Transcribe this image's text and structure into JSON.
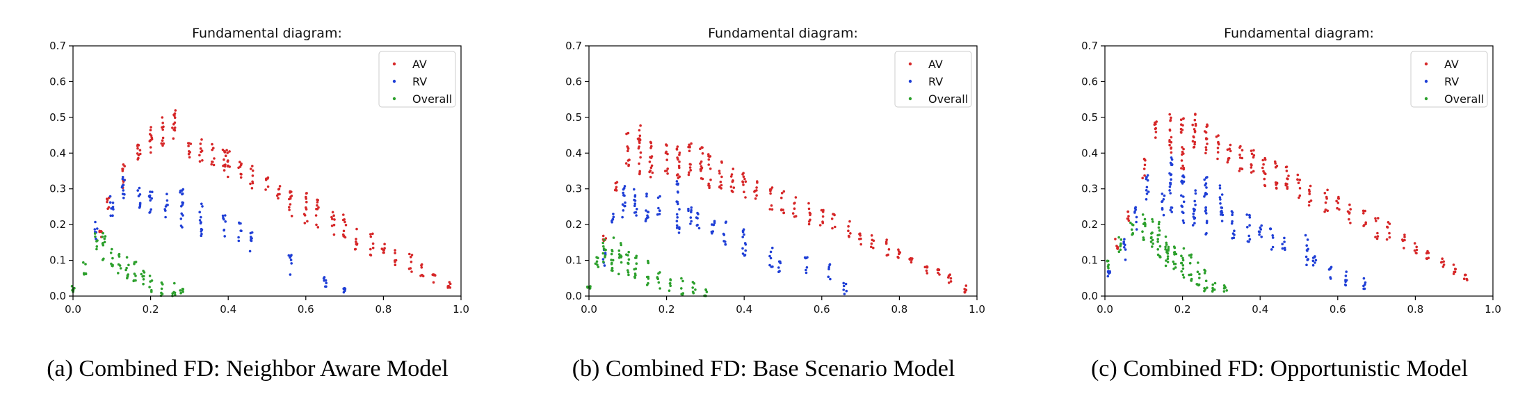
{
  "chart_data": [
    {
      "type": "scatter",
      "title": "Fundamental diagram:",
      "caption": "(a) Combined FD: Neighbor Aware Model",
      "xlim": [
        0.0,
        1.0
      ],
      "ylim": [
        0.0,
        0.7
      ],
      "xticks": [
        "0.0",
        "0.2",
        "0.4",
        "0.6",
        "0.8",
        "1.0"
      ],
      "yticks": [
        "0.0",
        "0.1",
        "0.2",
        "0.3",
        "0.4",
        "0.5",
        "0.6",
        "0.7"
      ],
      "legend_position": "top-right",
      "series": [
        {
          "name": "AV",
          "color": "#d62728",
          "clusters": [
            [
              0.07,
              0.16,
              0.19
            ],
            [
              0.09,
              0.24,
              0.28
            ],
            [
              0.13,
              0.29,
              0.37
            ],
            [
              0.17,
              0.36,
              0.45
            ],
            [
              0.2,
              0.4,
              0.48
            ],
            [
              0.23,
              0.42,
              0.5
            ],
            [
              0.26,
              0.44,
              0.54
            ],
            [
              0.3,
              0.38,
              0.45
            ],
            [
              0.33,
              0.37,
              0.44
            ],
            [
              0.36,
              0.36,
              0.43
            ],
            [
              0.39,
              0.34,
              0.43
            ],
            [
              0.4,
              0.33,
              0.41
            ],
            [
              0.43,
              0.32,
              0.39
            ],
            [
              0.46,
              0.3,
              0.37
            ],
            [
              0.5,
              0.29,
              0.34
            ],
            [
              0.53,
              0.27,
              0.33
            ],
            [
              0.56,
              0.22,
              0.31
            ],
            [
              0.6,
              0.2,
              0.29
            ],
            [
              0.63,
              0.19,
              0.27
            ],
            [
              0.67,
              0.17,
              0.24
            ],
            [
              0.7,
              0.16,
              0.24
            ],
            [
              0.73,
              0.13,
              0.2
            ],
            [
              0.77,
              0.11,
              0.18
            ],
            [
              0.8,
              0.1,
              0.16
            ],
            [
              0.83,
              0.08,
              0.13
            ],
            [
              0.87,
              0.06,
              0.12
            ],
            [
              0.9,
              0.05,
              0.09
            ],
            [
              0.93,
              0.03,
              0.07
            ],
            [
              0.97,
              0.01,
              0.04
            ]
          ]
        },
        {
          "name": "RV",
          "color": "#1f3fd6",
          "clusters": [
            [
              0.06,
              0.16,
              0.21
            ],
            [
              0.1,
              0.22,
              0.29
            ],
            [
              0.13,
              0.26,
              0.34
            ],
            [
              0.17,
              0.24,
              0.31
            ],
            [
              0.2,
              0.22,
              0.3
            ],
            [
              0.24,
              0.22,
              0.29
            ],
            [
              0.28,
              0.17,
              0.3
            ],
            [
              0.33,
              0.16,
              0.26
            ],
            [
              0.39,
              0.16,
              0.23
            ],
            [
              0.43,
              0.15,
              0.21
            ],
            [
              0.46,
              0.11,
              0.18
            ],
            [
              0.56,
              0.06,
              0.12
            ],
            [
              0.65,
              0.02,
              0.08
            ],
            [
              0.7,
              0.01,
              0.03
            ]
          ]
        },
        {
          "name": "Overall",
          "color": "#2ca02c",
          "clusters": [
            [
              0.0,
              0.01,
              0.03
            ],
            [
              0.03,
              0.06,
              0.11
            ],
            [
              0.06,
              0.13,
              0.18
            ],
            [
              0.08,
              0.1,
              0.19
            ],
            [
              0.1,
              0.08,
              0.14
            ],
            [
              0.12,
              0.06,
              0.12
            ],
            [
              0.14,
              0.04,
              0.11
            ],
            [
              0.16,
              0.03,
              0.1
            ],
            [
              0.18,
              0.02,
              0.08
            ],
            [
              0.2,
              0.01,
              0.06
            ],
            [
              0.23,
              0.0,
              0.05
            ],
            [
              0.26,
              0.0,
              0.04
            ],
            [
              0.28,
              0.0,
              0.02
            ]
          ]
        }
      ]
    },
    {
      "type": "scatter",
      "title": "Fundamental diagram:",
      "caption": "(b) Combined FD: Base Scenario Model",
      "xlim": [
        0.0,
        1.0
      ],
      "ylim": [
        0.0,
        0.7
      ],
      "xticks": [
        "0.0",
        "0.2",
        "0.4",
        "0.6",
        "0.8",
        "1.0"
      ],
      "yticks": [
        "0.0",
        "0.1",
        "0.2",
        "0.3",
        "0.4",
        "0.5",
        "0.6",
        "0.7"
      ],
      "legend_position": "top-right",
      "series": [
        {
          "name": "AV",
          "color": "#d62728",
          "clusters": [
            [
              0.04,
              0.14,
              0.17
            ],
            [
              0.07,
              0.28,
              0.32
            ],
            [
              0.1,
              0.36,
              0.46
            ],
            [
              0.13,
              0.34,
              0.49
            ],
            [
              0.16,
              0.32,
              0.44
            ],
            [
              0.2,
              0.34,
              0.43
            ],
            [
              0.23,
              0.33,
              0.45
            ],
            [
              0.26,
              0.32,
              0.43
            ],
            [
              0.29,
              0.31,
              0.42
            ],
            [
              0.31,
              0.3,
              0.4
            ],
            [
              0.34,
              0.3,
              0.38
            ],
            [
              0.37,
              0.28,
              0.36
            ],
            [
              0.4,
              0.27,
              0.35
            ],
            [
              0.43,
              0.26,
              0.33
            ],
            [
              0.47,
              0.24,
              0.31
            ],
            [
              0.5,
              0.23,
              0.3
            ],
            [
              0.53,
              0.22,
              0.28
            ],
            [
              0.57,
              0.2,
              0.27
            ],
            [
              0.6,
              0.19,
              0.25
            ],
            [
              0.63,
              0.18,
              0.23
            ],
            [
              0.67,
              0.16,
              0.21
            ],
            [
              0.7,
              0.14,
              0.19
            ],
            [
              0.73,
              0.13,
              0.17
            ],
            [
              0.77,
              0.11,
              0.16
            ],
            [
              0.8,
              0.09,
              0.13
            ],
            [
              0.83,
              0.08,
              0.11
            ],
            [
              0.87,
              0.06,
              0.09
            ],
            [
              0.9,
              0.05,
              0.08
            ],
            [
              0.93,
              0.03,
              0.06
            ],
            [
              0.97,
              0.01,
              0.03
            ]
          ]
        },
        {
          "name": "RV",
          "color": "#1f3fd6",
          "clusters": [
            [
              0.04,
              0.08,
              0.13
            ],
            [
              0.06,
              0.18,
              0.23
            ],
            [
              0.09,
              0.22,
              0.33
            ],
            [
              0.12,
              0.21,
              0.3
            ],
            [
              0.15,
              0.2,
              0.29
            ],
            [
              0.18,
              0.22,
              0.28
            ],
            [
              0.23,
              0.17,
              0.33
            ],
            [
              0.26,
              0.19,
              0.26
            ],
            [
              0.28,
              0.18,
              0.24
            ],
            [
              0.32,
              0.16,
              0.22
            ],
            [
              0.35,
              0.14,
              0.21
            ],
            [
              0.4,
              0.1,
              0.2
            ],
            [
              0.47,
              0.08,
              0.14
            ],
            [
              0.49,
              0.06,
              0.11
            ],
            [
              0.56,
              0.05,
              0.11
            ],
            [
              0.62,
              0.04,
              0.09
            ],
            [
              0.66,
              0.0,
              0.05
            ]
          ]
        },
        {
          "name": "Overall",
          "color": "#2ca02c",
          "clusters": [
            [
              0.0,
              0.02,
              0.03
            ],
            [
              0.02,
              0.08,
              0.11
            ],
            [
              0.04,
              0.09,
              0.17
            ],
            [
              0.06,
              0.07,
              0.17
            ],
            [
              0.08,
              0.06,
              0.15
            ],
            [
              0.1,
              0.05,
              0.13
            ],
            [
              0.12,
              0.04,
              0.12
            ],
            [
              0.15,
              0.03,
              0.1
            ],
            [
              0.18,
              0.02,
              0.08
            ],
            [
              0.21,
              0.01,
              0.06
            ],
            [
              0.24,
              0.0,
              0.05
            ],
            [
              0.27,
              0.0,
              0.04
            ],
            [
              0.3,
              0.0,
              0.02
            ]
          ]
        }
      ]
    },
    {
      "type": "scatter",
      "title": "Fundamental diagram:",
      "caption": "(c) Combined FD: Opportunistic Model",
      "xlim": [
        0.0,
        1.0
      ],
      "ylim": [
        0.0,
        0.7
      ],
      "xticks": [
        "0.0",
        "0.2",
        "0.4",
        "0.6",
        "0.8",
        "1.0"
      ],
      "yticks": [
        "0.0",
        "0.1",
        "0.2",
        "0.3",
        "0.4",
        "0.5",
        "0.6",
        "0.7"
      ],
      "legend_position": "top-right",
      "series": [
        {
          "name": "AV",
          "color": "#d62728",
          "clusters": [
            [
              0.03,
              0.13,
              0.16
            ],
            [
              0.06,
              0.21,
              0.25
            ],
            [
              0.1,
              0.33,
              0.39
            ],
            [
              0.13,
              0.43,
              0.5
            ],
            [
              0.17,
              0.4,
              0.52
            ],
            [
              0.2,
              0.34,
              0.5
            ],
            [
              0.23,
              0.41,
              0.54
            ],
            [
              0.26,
              0.4,
              0.5
            ],
            [
              0.29,
              0.38,
              0.45
            ],
            [
              0.32,
              0.37,
              0.44
            ],
            [
              0.35,
              0.35,
              0.43
            ],
            [
              0.38,
              0.34,
              0.42
            ],
            [
              0.41,
              0.3,
              0.39
            ],
            [
              0.44,
              0.3,
              0.38
            ],
            [
              0.47,
              0.28,
              0.37
            ],
            [
              0.5,
              0.27,
              0.34
            ],
            [
              0.53,
              0.25,
              0.31
            ],
            [
              0.57,
              0.23,
              0.3
            ],
            [
              0.6,
              0.22,
              0.28
            ],
            [
              0.63,
              0.2,
              0.26
            ],
            [
              0.67,
              0.18,
              0.24
            ],
            [
              0.7,
              0.16,
              0.22
            ],
            [
              0.73,
              0.15,
              0.21
            ],
            [
              0.77,
              0.13,
              0.18
            ],
            [
              0.8,
              0.11,
              0.16
            ],
            [
              0.83,
              0.1,
              0.14
            ],
            [
              0.87,
              0.08,
              0.11
            ],
            [
              0.9,
              0.06,
              0.09
            ],
            [
              0.93,
              0.03,
              0.06
            ]
          ]
        },
        {
          "name": "RV",
          "color": "#1f3fd6",
          "clusters": [
            [
              0.01,
              0.05,
              0.07
            ],
            [
              0.05,
              0.1,
              0.16
            ],
            [
              0.08,
              0.18,
              0.25
            ],
            [
              0.11,
              0.26,
              0.34
            ],
            [
              0.15,
              0.22,
              0.29
            ],
            [
              0.17,
              0.23,
              0.4
            ],
            [
              0.2,
              0.2,
              0.34
            ],
            [
              0.23,
              0.19,
              0.3
            ],
            [
              0.26,
              0.17,
              0.34
            ],
            [
              0.3,
              0.19,
              0.31
            ],
            [
              0.33,
              0.16,
              0.24
            ],
            [
              0.37,
              0.15,
              0.23
            ],
            [
              0.4,
              0.14,
              0.2
            ],
            [
              0.43,
              0.13,
              0.19
            ],
            [
              0.46,
              0.12,
              0.17
            ],
            [
              0.52,
              0.08,
              0.17
            ],
            [
              0.54,
              0.06,
              0.12
            ],
            [
              0.58,
              0.04,
              0.1
            ],
            [
              0.62,
              0.02,
              0.08
            ],
            [
              0.67,
              0.02,
              0.05
            ]
          ]
        },
        {
          "name": "Overall",
          "color": "#2ca02c",
          "clusters": [
            [
              0.01,
              0.07,
              0.1
            ],
            [
              0.04,
              0.12,
              0.18
            ],
            [
              0.07,
              0.17,
              0.23
            ],
            [
              0.1,
              0.15,
              0.23
            ],
            [
              0.12,
              0.13,
              0.22
            ],
            [
              0.14,
              0.09,
              0.21
            ],
            [
              0.16,
              0.06,
              0.19
            ],
            [
              0.18,
              0.05,
              0.14
            ],
            [
              0.2,
              0.05,
              0.14
            ],
            [
              0.22,
              0.04,
              0.12
            ],
            [
              0.24,
              0.03,
              0.1
            ],
            [
              0.26,
              0.01,
              0.08
            ],
            [
              0.28,
              0.01,
              0.04
            ],
            [
              0.31,
              0.01,
              0.03
            ]
          ]
        }
      ]
    }
  ]
}
